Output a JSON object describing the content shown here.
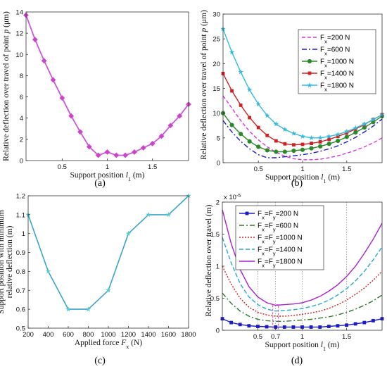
{
  "figure": {
    "panel_labels": [
      "(a)",
      "(b)",
      "(c)",
      "(d)"
    ]
  },
  "chart_data": [
    {
      "id": "a",
      "type": "line",
      "xlabel_pre": "Support position ",
      "xlabel_var": "l",
      "xlabel_sub": "1",
      "xlabel_post": " (m)",
      "ylabel_pre": "Relative deflection over travel of point ",
      "ylabel_var": "p",
      "ylabel_post": " (μm)",
      "xlim": [
        0.1,
        1.9
      ],
      "ylim": [
        0,
        14
      ],
      "xticks": [
        0.5,
        1,
        1.5
      ],
      "xtick_labels": [
        "0.5",
        "1",
        "1.5"
      ],
      "yticks": [
        0,
        2,
        4,
        6,
        8,
        10,
        12,
        14
      ],
      "ytick_labels": [
        "0",
        "2",
        "4",
        "6",
        "8",
        "10",
        "12",
        "14"
      ],
      "colors": {
        "line": "#cc55dd",
        "marker": "#cc44cc"
      },
      "series": [
        {
          "x": [
            0.1,
            0.2,
            0.3,
            0.4,
            0.5,
            0.6,
            0.7,
            0.8,
            0.9,
            1.0,
            1.1,
            1.2,
            1.3,
            1.4,
            1.5,
            1.6,
            1.7,
            1.8,
            1.9
          ],
          "y": [
            13.7,
            11.4,
            9.4,
            7.6,
            5.9,
            4.2,
            2.7,
            1.3,
            0.5,
            0.8,
            0.5,
            0.5,
            0.8,
            1.2,
            1.6,
            2.3,
            3.3,
            4.2,
            5.3
          ]
        }
      ]
    },
    {
      "id": "b",
      "type": "line",
      "xlabel_pre": "Support position ",
      "xlabel_var": "l",
      "xlabel_sub": "1",
      "xlabel_post": " (m)",
      "ylabel_pre": "Relative deflection over  travel of point ",
      "ylabel_var": "p",
      "ylabel_post": " (μm)",
      "xlim": [
        0.1,
        1.9
      ],
      "ylim": [
        0,
        30
      ],
      "xticks": [
        0.5,
        1,
        1.5
      ],
      "xtick_labels": [
        "0.5",
        "1",
        "1.5"
      ],
      "yticks": [
        0,
        5,
        10,
        15,
        20,
        25,
        30
      ],
      "ytick_labels": [
        "0",
        "5",
        "10",
        "15",
        "20",
        "25",
        "30"
      ],
      "legend_position": "top-right",
      "x": [
        0.1,
        0.2,
        0.3,
        0.4,
        0.5,
        0.6,
        0.7,
        0.8,
        0.9,
        1.0,
        1.1,
        1.2,
        1.3,
        1.4,
        1.5,
        1.6,
        1.7,
        1.8,
        1.9
      ],
      "series": [
        {
          "legend_main": "F",
          "legend_sub": "x",
          "legend_rest": "=200 N",
          "color": "#dd33dd",
          "dash": "5,3",
          "marker": "none",
          "values": [
            13.5,
            11,
            8.5,
            6.3,
            4.6,
            3.2,
            2.1,
            1.3,
            0.8,
            0.6,
            0.6,
            0.7,
            1.0,
            1.4,
            1.9,
            2.5,
            3.2,
            4.0,
            5.0
          ]
        },
        {
          "legend_main": "F",
          "legend_sub": "x",
          "legend_rest": "=600 N",
          "color": "#1a1acc",
          "dash": "7,3,2,3",
          "marker": "none",
          "values": [
            8.5,
            6.2,
            4.3,
            2.8,
            1.6,
            1.0,
            1.0,
            1.2,
            1.4,
            1.6,
            1.9,
            2.3,
            2.8,
            3.4,
            4.2,
            5.1,
            6.2,
            7.4,
            8.8
          ]
        },
        {
          "legend_main": "F",
          "legend_sub": "x",
          "legend_rest": "=1000 N",
          "color": "#2a8a2a",
          "dash": "none",
          "marker": "circle",
          "values": [
            10,
            7.6,
            5.8,
            4.3,
            3.2,
            2.5,
            2.2,
            2.2,
            2.4,
            2.6,
            2.9,
            3.3,
            3.8,
            4.4,
            5.2,
            6.1,
            7.1,
            8.2,
            9.4
          ]
        },
        {
          "legend_main": "F",
          "legend_sub": "x",
          "legend_rest": "=1400 N",
          "color": "#cc2222",
          "dash": "none",
          "marker": "square",
          "values": [
            18,
            14.5,
            11.6,
            9.1,
            7.1,
            5.5,
            4.4,
            3.8,
            3.6,
            3.7,
            3.9,
            4.2,
            4.7,
            5.3,
            6.0,
            6.8,
            7.7,
            8.7,
            9.7
          ]
        },
        {
          "legend_main": "F",
          "legend_sub": "x",
          "legend_rest": "=1800 N",
          "color": "#33bbdd",
          "dash": "none",
          "marker": "star",
          "values": [
            27,
            22.3,
            18.3,
            14.7,
            11.8,
            9.5,
            7.8,
            6.7,
            5.9,
            5.3,
            5.0,
            5.0,
            5.3,
            5.7,
            6.3,
            7.0,
            7.8,
            8.7,
            9.7
          ]
        }
      ]
    },
    {
      "id": "c",
      "type": "line",
      "xlabel_pre": "Applied force ",
      "xlabel_var": "F",
      "xlabel_sub": "x",
      "xlabel_post": " (N)",
      "ylabel_line1": "Support position with minimum",
      "ylabel_line2": "relative deflection (m)",
      "xlim": [
        200,
        1800
      ],
      "ylim": [
        0.5,
        1.2
      ],
      "xticks": [
        200,
        400,
        600,
        800,
        1000,
        1200,
        1400,
        1600,
        1800
      ],
      "xtick_labels": [
        "200",
        "400",
        "600",
        "800",
        "1000",
        "1200",
        "1400",
        "1600",
        "1800"
      ],
      "yticks": [
        0.5,
        0.6,
        0.7,
        0.8,
        0.9,
        1.0,
        1.1,
        1.2
      ],
      "ytick_labels": [
        "0.5",
        "0.6",
        "0.7",
        "0.8",
        "0.9",
        "1",
        "1.1",
        "1.2"
      ],
      "colors": {
        "line": "#3aa5cc",
        "marker": "#55cccc"
      },
      "series": [
        {
          "x": [
            200,
            400,
            600,
            800,
            1000,
            1200,
            1400,
            1600,
            1800
          ],
          "y": [
            1.1,
            0.8,
            0.6,
            0.6,
            0.7,
            1.0,
            1.1,
            1.1,
            1.2
          ]
        }
      ]
    },
    {
      "id": "d",
      "type": "line",
      "xlabel_pre": "Support position ",
      "xlabel_var": "l",
      "xlabel_sub": "1",
      "xlabel_post": " (m)",
      "ylabel": "Relative deflection over  travel   (m)",
      "exponent_base": "x 10",
      "exponent_power": "-5",
      "xlim": [
        0.1,
        1.9
      ],
      "ylim": [
        0,
        2
      ],
      "xticks": [
        0.5,
        0.7,
        1,
        1.5
      ],
      "xtick_labels": [
        "0.5",
        "0.7",
        "1",
        "1.5"
      ],
      "yticks": [
        0,
        0.5,
        1,
        1.5,
        2
      ],
      "ytick_labels": [
        "0",
        "0.5",
        "1",
        "1.5",
        "2"
      ],
      "vlines": [
        0.5,
        0.7,
        1.0,
        1.5
      ],
      "highlight": {
        "x": 0.7,
        "y_range": [
          0,
          0.4
        ],
        "color": "#cc44cc"
      },
      "legend_position": "top-left",
      "x": [
        0.1,
        0.2,
        0.3,
        0.4,
        0.5,
        0.6,
        0.7,
        0.8,
        0.9,
        1.0,
        1.1,
        1.2,
        1.3,
        1.4,
        1.5,
        1.6,
        1.7,
        1.8,
        1.9
      ],
      "series": [
        {
          "legend_parts": [
            "F",
            "x",
            "=F",
            "y",
            "=200 N"
          ],
          "color": "#1a1acc",
          "dash": "none",
          "marker": "square",
          "values": [
            0.18,
            0.12,
            0.09,
            0.07,
            0.06,
            0.055,
            0.05,
            0.05,
            0.05,
            0.05,
            0.05,
            0.05,
            0.06,
            0.07,
            0.08,
            0.1,
            0.12,
            0.15,
            0.18
          ]
        },
        {
          "legend_parts": [
            "F",
            "x",
            "=F",
            "y",
            "=600 N"
          ],
          "color": "#2a7a2a",
          "dash": "7,3,2,3",
          "marker": "none",
          "values": [
            0.58,
            0.42,
            0.3,
            0.22,
            0.17,
            0.15,
            0.14,
            0.14,
            0.15,
            0.16,
            0.17,
            0.19,
            0.21,
            0.24,
            0.28,
            0.33,
            0.39,
            0.46,
            0.55
          ]
        },
        {
          "legend_parts": [
            "F",
            "x",
            "=F",
            "y",
            "=1000 N"
          ],
          "color": "#cc2222",
          "dash": "2,2",
          "marker": "none",
          "values": [
            1.0,
            0.72,
            0.5,
            0.36,
            0.28,
            0.24,
            0.22,
            0.22,
            0.23,
            0.25,
            0.27,
            0.3,
            0.34,
            0.4,
            0.47,
            0.56,
            0.66,
            0.78,
            0.92
          ]
        },
        {
          "legend_parts": [
            "F",
            "x",
            "=F",
            "y",
            "=1400 N"
          ],
          "color": "#22aacc",
          "dash": "6,3",
          "marker": "none",
          "values": [
            1.45,
            1.05,
            0.73,
            0.52,
            0.4,
            0.33,
            0.3,
            0.31,
            0.32,
            0.34,
            0.37,
            0.41,
            0.47,
            0.55,
            0.65,
            0.77,
            0.92,
            1.1,
            1.3
          ]
        },
        {
          "legend_parts": [
            "F",
            "x",
            "=F",
            "y",
            "=1800 N"
          ],
          "color": "#aa22cc",
          "dash": "none",
          "marker": "none",
          "values": [
            1.88,
            1.35,
            0.95,
            0.68,
            0.52,
            0.43,
            0.39,
            0.4,
            0.41,
            0.43,
            0.47,
            0.53,
            0.61,
            0.71,
            0.84,
            1.0,
            1.2,
            1.42,
            1.67
          ]
        }
      ]
    }
  ]
}
